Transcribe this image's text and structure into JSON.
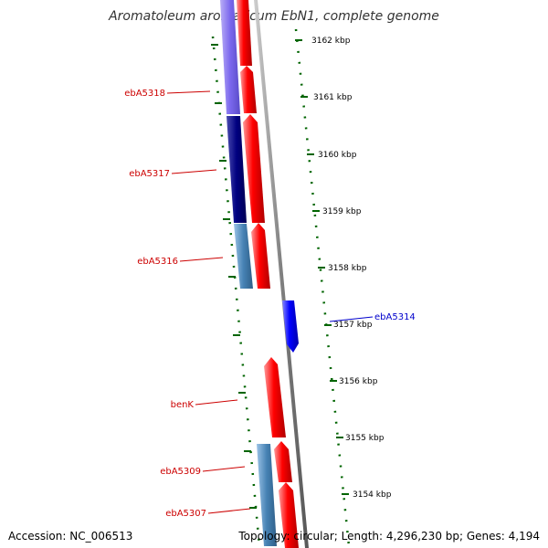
{
  "title": "Aromatoleum aromaticum EbN1, complete genome",
  "accession": "Accession: NC_006513",
  "summary": "Topology: circular; Length: 4,296,230 bp; Genes: 4,194",
  "colors": {
    "forward_gene": "#ff0000",
    "reverse_gene": "#0000ff",
    "cds_violet": "#7b68ee",
    "cds_navy": "#000080",
    "cds_steel": "#4682b4",
    "backbone": "#808080",
    "ticks": "#006400",
    "left_label": "#cc0000",
    "right_label": "#0000cc"
  },
  "scale_ticks": [
    "3162 kbp",
    "3161 kbp",
    "3160 kbp",
    "3159 kbp",
    "3158 kbp",
    "3157 kbp",
    "3156 kbp",
    "3155 kbp",
    "3154 kbp"
  ],
  "left_labels": [
    "ebA5318",
    "ebA5317",
    "ebA5316",
    "benK",
    "ebA5309",
    "ebA5307"
  ],
  "right_labels": [
    "ebA5314"
  ]
}
